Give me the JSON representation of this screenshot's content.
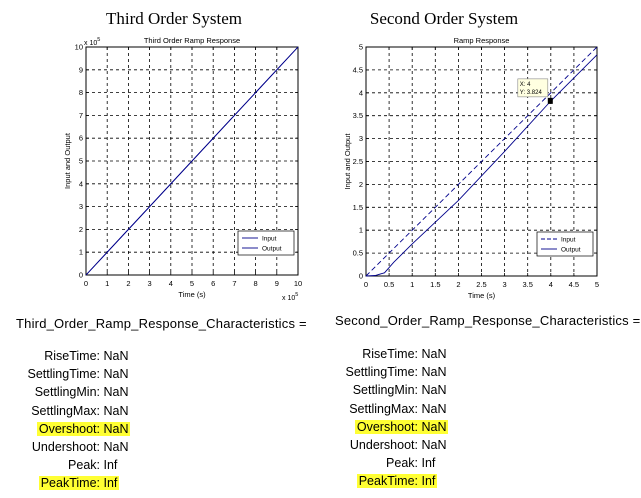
{
  "titles": {
    "left": "Third Order System",
    "right": "Second Order System"
  },
  "chart_data": [
    {
      "type": "line",
      "title": "Third Order Ramp Response",
      "xlabel": "Time (s)",
      "ylabel": "Input and Output",
      "x_multiplier": "x 10",
      "x_multiplier_exp": "5",
      "y_multiplier": "x 10",
      "y_multiplier_exp": "5",
      "xlim": [
        0,
        10
      ],
      "ylim": [
        0,
        10
      ],
      "xticks": [
        0,
        1,
        2,
        3,
        4,
        5,
        6,
        7,
        8,
        9,
        10
      ],
      "yticks": [
        0,
        1,
        2,
        3,
        4,
        5,
        6,
        7,
        8,
        9,
        10
      ],
      "xtick_labels": [
        "0",
        "1",
        "2",
        "3",
        "4",
        "5",
        "6",
        "7",
        "8",
        "9",
        "10"
      ],
      "ytick_labels": [
        "0",
        "1",
        "2",
        "3",
        "4",
        "5",
        "6",
        "7",
        "8",
        "9",
        "10"
      ],
      "grid": true,
      "legend_position": "bottom-right",
      "series": [
        {
          "name": "Input",
          "style": "solid",
          "color": "#00008b",
          "x": [
            0,
            10
          ],
          "y": [
            0,
            10
          ]
        },
        {
          "name": "Output",
          "style": "solid",
          "color": "#00008b",
          "x": [
            0,
            10
          ],
          "y": [
            0,
            10
          ]
        }
      ]
    },
    {
      "type": "line",
      "title": "Ramp Response",
      "xlabel": "Time (s)",
      "ylabel": "Input and Output",
      "xlim": [
        0,
        5
      ],
      "ylim": [
        0,
        5
      ],
      "xticks": [
        0,
        0.5,
        1,
        1.5,
        2,
        2.5,
        3,
        3.5,
        4,
        4.5,
        5
      ],
      "yticks": [
        0,
        0.5,
        1,
        1.5,
        2,
        2.5,
        3,
        3.5,
        4,
        4.5,
        5
      ],
      "xtick_labels": [
        "0",
        "0.5",
        "1",
        "1.5",
        "2",
        "2.5",
        "3",
        "3.5",
        "4",
        "4.5",
        "5"
      ],
      "ytick_labels": [
        "0",
        "0.5",
        "1",
        "1.5",
        "2",
        "2.5",
        "3",
        "3.5",
        "4",
        "4.5",
        "5"
      ],
      "grid": true,
      "legend_position": "bottom-right",
      "series": [
        {
          "name": "Input",
          "style": "dashed",
          "color": "#00008b",
          "x": [
            0,
            5
          ],
          "y": [
            0,
            5
          ]
        },
        {
          "name": "Output",
          "style": "solid",
          "color": "#00008b",
          "x": [
            0,
            0.2,
            0.4,
            0.6,
            0.8,
            1,
            2,
            3,
            4,
            5
          ],
          "y": [
            0,
            0.01,
            0.07,
            0.3,
            0.5,
            0.7,
            1.65,
            2.72,
            3.82,
            4.83
          ]
        }
      ],
      "datatip": {
        "x_label": "X: 4",
        "y_label": "Y: 3.824",
        "x": 4,
        "y": 3.824
      }
    }
  ],
  "left_panel": {
    "heading": "Third_Order_Ramp_Response_Characteristics =",
    "rows": [
      {
        "text": "RiseTime: NaN",
        "highlight": false
      },
      {
        "text": "SettlingTime: NaN",
        "highlight": false
      },
      {
        "text": "SettlingMin: NaN",
        "highlight": false
      },
      {
        "text": "SettlingMax: NaN",
        "highlight": false
      },
      {
        "text": "Overshoot: NaN",
        "highlight": true
      },
      {
        "text": "Undershoot: NaN",
        "highlight": false
      },
      {
        "text": "Peak: Inf",
        "highlight": false
      },
      {
        "text": "PeakTime: Inf",
        "highlight": true
      }
    ]
  },
  "right_panel": {
    "heading": "Second_Order_Ramp_Response_Characteristics =",
    "rows": [
      {
        "text": "RiseTime: NaN",
        "highlight": false
      },
      {
        "text": "SettlingTime: NaN",
        "highlight": false
      },
      {
        "text": "SettlingMin: NaN",
        "highlight": false
      },
      {
        "text": "SettlingMax: NaN",
        "highlight": false
      },
      {
        "text": "Overshoot: NaN",
        "highlight": true
      },
      {
        "text": "Undershoot: NaN",
        "highlight": false
      },
      {
        "text": "Peak: Inf",
        "highlight": false
      },
      {
        "text": "PeakTime: Inf",
        "highlight": true
      }
    ]
  }
}
